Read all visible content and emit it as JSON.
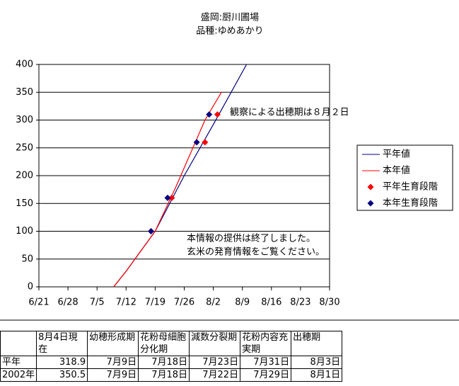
{
  "chart_data": {
    "type": "line",
    "title": "盛岡:厨川圃場",
    "subtitle": "品種:ゆめあかり",
    "xlim": [
      "6/21",
      "8/30"
    ],
    "xticks": [
      "6/21",
      "6/28",
      "7/5",
      "7/12",
      "7/19",
      "7/26",
      "8/2",
      "8/9",
      "8/16",
      "8/23",
      "8/30"
    ],
    "ylim": [
      0,
      400
    ],
    "yticks": [
      0,
      50,
      100,
      150,
      200,
      250,
      300,
      350,
      400
    ],
    "grid": true,
    "legend": "right",
    "series": [
      {
        "name": "平年値",
        "type": "line",
        "color": "#000080",
        "x": [
          "7/9",
          "7/12",
          "7/19",
          "7/26",
          "8/2",
          "8/4",
          "8/10"
        ],
        "values": [
          0,
          28,
          100,
          200,
          292,
          318.9,
          400
        ]
      },
      {
        "name": "本年値",
        "type": "line",
        "color": "#ff0000",
        "x": [
          "7/9",
          "7/12",
          "7/19",
          "7/24",
          "7/31",
          "8/4"
        ],
        "values": [
          0,
          28,
          100,
          180,
          300,
          350.5
        ]
      },
      {
        "name": "平年生育段階",
        "type": "scatter",
        "color": "#ff0000",
        "x": [
          "7/18",
          "7/23",
          "7/31",
          "8/3"
        ],
        "values": [
          100,
          160,
          260,
          310
        ]
      },
      {
        "name": "本年生育段階",
        "type": "scatter",
        "color": "#000080",
        "x": [
          "7/18",
          "7/22",
          "7/29",
          "8/1"
        ],
        "values": [
          100,
          160,
          260,
          310
        ]
      }
    ],
    "annotations": [
      {
        "text": "観察による出穂期は８月２日",
        "color": "#0000cc"
      },
      {
        "text": "本情報の提供は終了しました。",
        "color": "#ff0000"
      },
      {
        "text": "玄米の発育情報をご覧ください。",
        "color": "#ff0000"
      }
    ]
  },
  "table": {
    "header": [
      "8月4日現在",
      "幼穂形成期",
      "花粉母細胞分化期",
      "減数分裂期",
      "花粉内容充実期",
      "出穂期"
    ],
    "rows": [
      [
        "平年",
        "318.9",
        "7月9日",
        "7月18日",
        "7月23日",
        "7月31日",
        "8月3日"
      ],
      [
        "2002年",
        "350.5",
        "7月9日",
        "7月18日",
        "7月22日",
        "7月29日",
        "8月1日"
      ]
    ]
  }
}
